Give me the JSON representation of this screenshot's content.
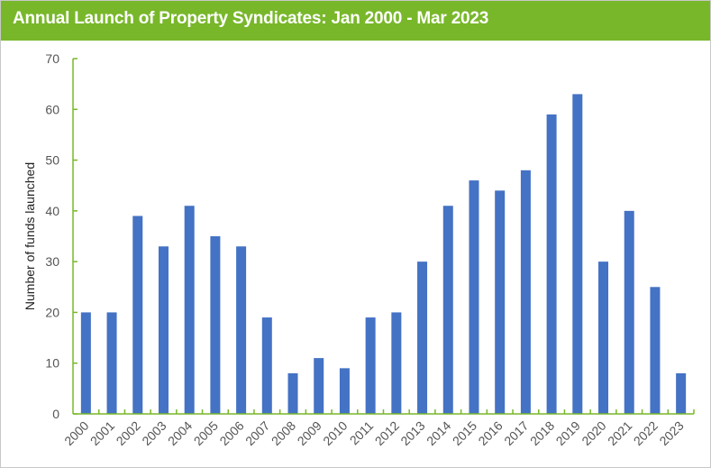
{
  "chart_data": {
    "type": "bar",
    "title": "Annual Launch of Property Syndicates: Jan 2000 - Mar 2023",
    "xlabel": "",
    "ylabel": "Number of funds launched",
    "ylim": [
      0,
      70
    ],
    "yticks": [
      0,
      10,
      20,
      30,
      40,
      50,
      60,
      70
    ],
    "grid": false,
    "categories": [
      "2000",
      "2001",
      "2002",
      "2003",
      "2004",
      "2005",
      "2006",
      "2007",
      "2008",
      "2009",
      "2010",
      "2011",
      "2012",
      "2013",
      "2014",
      "2015",
      "2016",
      "2017",
      "2018",
      "2019",
      "2020",
      "2021",
      "2022",
      "2023"
    ],
    "values": [
      20,
      20,
      39,
      33,
      41,
      35,
      33,
      19,
      8,
      11,
      9,
      19,
      20,
      30,
      41,
      46,
      44,
      48,
      59,
      63,
      30,
      40,
      25,
      8
    ],
    "colors": {
      "bar": "#4472c4",
      "axis": "#78b72a",
      "header": "#78b72a"
    }
  }
}
